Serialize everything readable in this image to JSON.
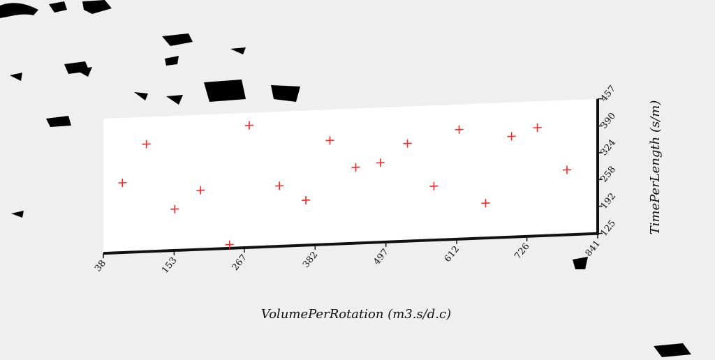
{
  "chart_data": {
    "type": "scatter",
    "title": "",
    "xlabel": "VolumePerRotation (m3.s/d.c)",
    "ylabel": "TimePerLength (s/m)",
    "xlim": [
      38,
      841
    ],
    "ylim": [
      125,
      457
    ],
    "x_ticks": [
      "38",
      "153",
      "267",
      "382",
      "497",
      "612",
      "726",
      "841"
    ],
    "y_ticks": [
      "125",
      "192",
      "258",
      "324",
      "390",
      "457"
    ],
    "marker": "plus",
    "marker_color": "#ff2222",
    "grid": false,
    "legend": "none",
    "points": [
      {
        "x": 69,
        "y": 297
      },
      {
        "x": 108,
        "y": 390
      },
      {
        "x": 154,
        "y": 227
      },
      {
        "x": 196,
        "y": 271
      },
      {
        "x": 243,
        "y": 134
      },
      {
        "x": 275,
        "y": 426
      },
      {
        "x": 324,
        "y": 274
      },
      {
        "x": 367,
        "y": 236
      },
      {
        "x": 406,
        "y": 381
      },
      {
        "x": 448,
        "y": 312
      },
      {
        "x": 488,
        "y": 321
      },
      {
        "x": 532,
        "y": 366
      },
      {
        "x": 575,
        "y": 258
      },
      {
        "x": 616,
        "y": 395
      },
      {
        "x": 659,
        "y": 211
      },
      {
        "x": 701,
        "y": 373
      },
      {
        "x": 743,
        "y": 392
      },
      {
        "x": 791,
        "y": 285
      }
    ]
  }
}
